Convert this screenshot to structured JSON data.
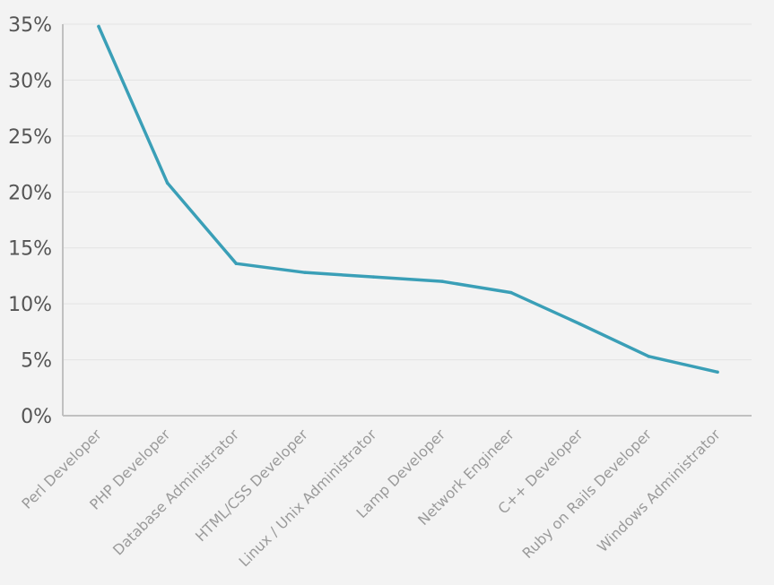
{
  "chart_data": {
    "type": "line",
    "categories": [
      "Perl Developer",
      "PHP Developer",
      "Database Administrator",
      "HTML/CSS Developer",
      "Linux / Unix Administrator",
      "Lamp Developer",
      "Network Engineer",
      "C++ Developer",
      "Ruby on Rails Developer",
      "Windows Administrator"
    ],
    "series": [
      {
        "values": [
          34.8,
          20.8,
          13.6,
          12.8,
          12.4,
          12.0,
          11.0,
          8.2,
          5.3,
          3.9
        ],
        "color": "#3a9fb7"
      }
    ],
    "ylim": [
      0,
      35
    ],
    "yticks": [
      0,
      5,
      10,
      15,
      20,
      25,
      30,
      35
    ],
    "ytick_labels": [
      "0%",
      "5%",
      "10%",
      "15%",
      "20%",
      "25%",
      "30%",
      "35%"
    ],
    "grid": true,
    "title": "",
    "xlabel": "",
    "ylabel": ""
  }
}
